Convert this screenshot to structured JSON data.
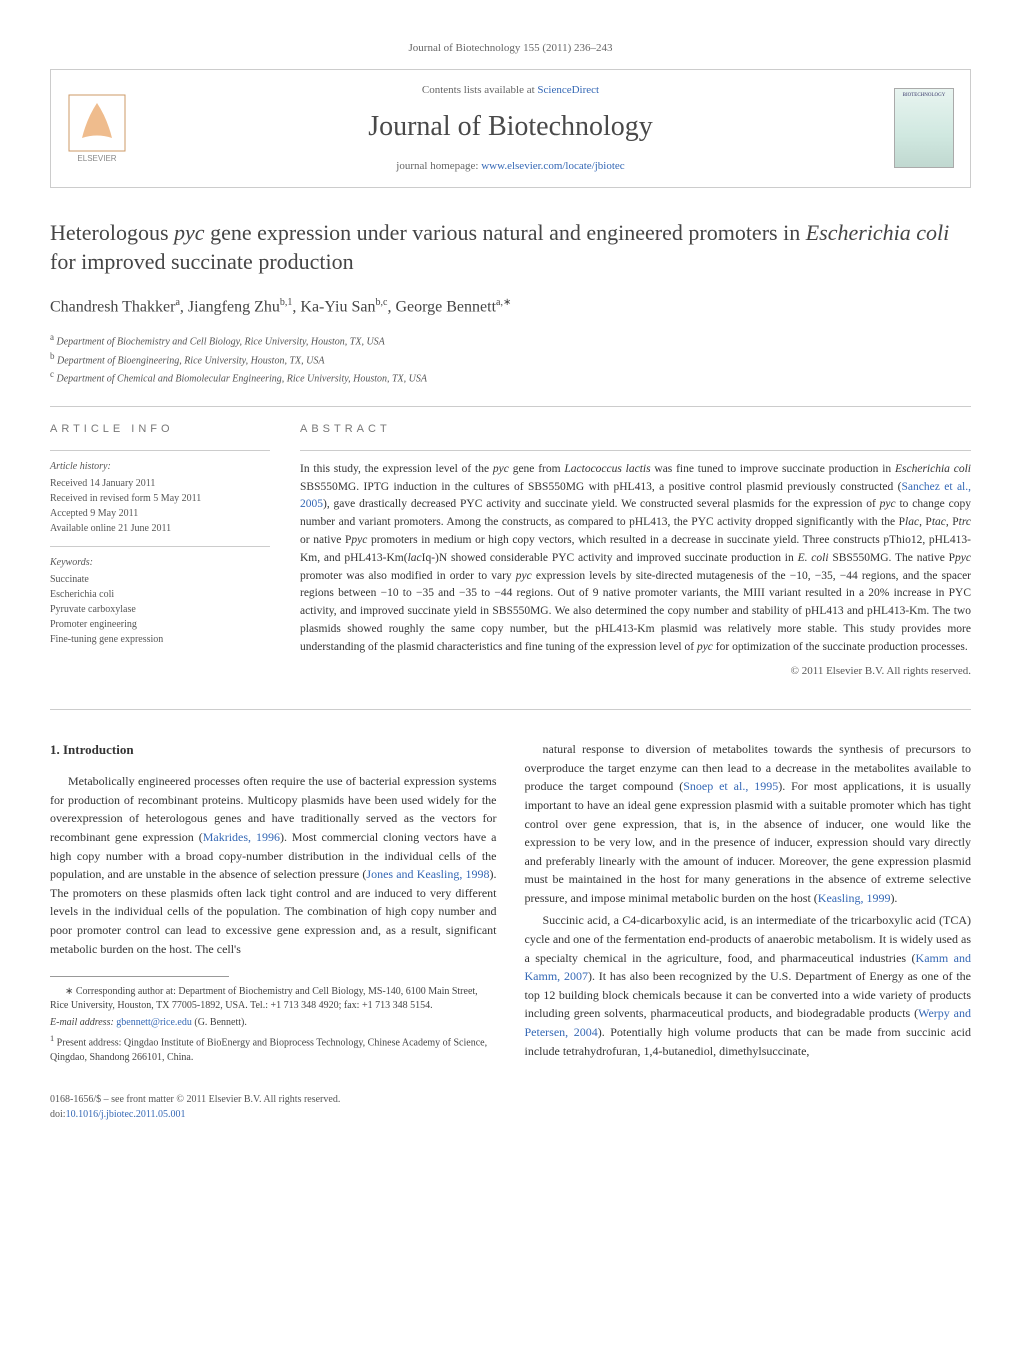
{
  "journal_ref": "Journal of Biotechnology 155 (2011) 236–243",
  "header": {
    "contents_prefix": "Contents lists available at ",
    "contents_link": "ScienceDirect",
    "journal_name": "Journal of Biotechnology",
    "homepage_prefix": "journal homepage: ",
    "homepage_link": "www.elsevier.com/locate/jbiotec",
    "cover_label": "BIOTECHNOLOGY"
  },
  "title_html": "Heterologous <i>pyc</i> gene expression under various natural and engineered promoters in <i>Escherichia coli</i> for improved succinate production",
  "authors_html": "Chandresh Thakker<sup>a</sup>, Jiangfeng Zhu<sup>b,1</sup>, Ka-Yiu San<sup>b,c</sup>, George Bennett<sup>a,∗</sup>",
  "affiliations": [
    {
      "sup": "a",
      "text": "Department of Biochemistry and Cell Biology, Rice University, Houston, TX, USA"
    },
    {
      "sup": "b",
      "text": "Department of Bioengineering, Rice University, Houston, TX, USA"
    },
    {
      "sup": "c",
      "text": "Department of Chemical and Biomolecular Engineering, Rice University, Houston, TX, USA"
    }
  ],
  "article_info": {
    "heading": "ARTICLE INFO",
    "history_label": "Article history:",
    "history": [
      "Received 14 January 2011",
      "Received in revised form 5 May 2011",
      "Accepted 9 May 2011",
      "Available online 21 June 2011"
    ],
    "keywords_label": "Keywords:",
    "keywords": [
      "Succinate",
      "Escherichia coli",
      "Pyruvate carboxylase",
      "Promoter engineering",
      "Fine-tuning gene expression"
    ]
  },
  "abstract": {
    "heading": "ABSTRACT",
    "text_html": "In this study, the expression level of the <i>pyc</i> gene from <i>Lactococcus lactis</i> was fine tuned to improve succinate production in <i>Escherichia coli</i> SBS550MG. IPTG induction in the cultures of SBS550MG with pHL413, a positive control plasmid previously constructed (<span class=\"ref-link\">Sanchez et al., 2005</span>), gave drastically decreased PYC activity and succinate yield. We constructed several plasmids for the expression of <i>pyc</i> to change copy number and variant promoters. Among the constructs, as compared to pHL413, the PYC activity dropped significantly with the P<i>lac</i>, P<i>tac</i>, P<i>trc</i> or native P<i>pyc</i> promoters in medium or high copy vectors, which resulted in a decrease in succinate yield. Three constructs pThio12, pHL413-Km, and pHL413-Km(<i>lac</i>Iq-)N showed considerable PYC activity and improved succinate production in <i>E. coli</i> SBS550MG. The native P<i>pyc</i> promoter was also modified in order to vary <i>pyc</i> expression levels by site-directed mutagenesis of the −10, −35, −44 regions, and the spacer regions between −10 to −35 and −35 to −44 regions. Out of 9 native promoter variants, the MIII variant resulted in a 20% increase in PYC activity, and improved succinate yield in SBS550MG. We also determined the copy number and stability of pHL413 and pHL413-Km. The two plasmids showed roughly the same copy number, but the pHL413-Km plasmid was relatively more stable. This study provides more understanding of the plasmid characteristics and fine tuning of the expression level of <i>pyc</i> for optimization of the succinate production processes.",
    "copyright": "© 2011 Elsevier B.V. All rights reserved."
  },
  "body": {
    "section_heading": "1. Introduction",
    "col1_paras_html": [
      "Metabolically engineered processes often require the use of bacterial expression systems for production of recombinant proteins. Multicopy plasmids have been used widely for the overexpression of heterologous genes and have traditionally served as the vectors for recombinant gene expression (<span class=\"ref-link\">Makrides, 1996</span>). Most commercial cloning vectors have a high copy number with a broad copy-number distribution in the individual cells of the population, and are unstable in the absence of selection pressure (<span class=\"ref-link\">Jones and Keasling, 1998</span>). The promoters on these plasmids often lack tight control and are induced to very different levels in the individual cells of the population. The combination of high copy number and poor promoter control can lead to excessive gene expression and, as a result, significant metabolic burden on the host. The cell's"
    ],
    "col2_paras_html": [
      "natural response to diversion of metabolites towards the synthesis of precursors to overproduce the target enzyme can then lead to a decrease in the metabolites available to produce the target compound (<span class=\"ref-link\">Snoep et al., 1995</span>). For most applications, it is usually important to have an ideal gene expression plasmid with a suitable promoter which has tight control over gene expression, that is, in the absence of inducer, one would like the expression to be very low, and in the presence of inducer, expression should vary directly and preferably linearly with the amount of inducer. Moreover, the gene expression plasmid must be maintained in the host for many generations in the absence of extreme selective pressure, and impose minimal metabolic burden on the host (<span class=\"ref-link\">Keasling, 1999</span>).",
      "Succinic acid, a C4-dicarboxylic acid, is an intermediate of the tricarboxylic acid (TCA) cycle and one of the fermentation end-products of anaerobic metabolism. It is widely used as a specialty chemical in the agriculture, food, and pharmaceutical industries (<span class=\"ref-link\">Kamm and Kamm, 2007</span>). It has also been recognized by the U.S. Department of Energy as one of the top 12 building block chemicals because it can be converted into a wide variety of products including green solvents, pharmaceutical products, and biodegradable products (<span class=\"ref-link\">Werpy and Petersen, 2004</span>). Potentially high volume products that can be made from succinic acid include tetrahydrofuran, 1,4-butanediol, dimethylsuccinate,"
    ]
  },
  "footnotes": {
    "corresponding_html": "∗ Corresponding author at: Department of Biochemistry and Cell Biology, MS-140, 6100 Main Street, Rice University, Houston, TX 77005-1892, USA. Tel.: +1 713 348 4920; fax: +1 713 348 5154.",
    "email_label": "E-mail address:",
    "email": "gbennett@rice.edu",
    "email_suffix": "(G. Bennett).",
    "present_address_html": "<sup>1</sup> Present address: Qingdao Institute of BioEnergy and Bioprocess Technology, Chinese Academy of Science, Qingdao, Shandong 266101, China."
  },
  "footer": {
    "copyright": "0168-1656/$ – see front matter © 2011 Elsevier B.V. All rights reserved.",
    "doi_prefix": "doi:",
    "doi": "10.1016/j.jbiotec.2011.05.001"
  },
  "colors": {
    "link": "#3568b5",
    "text": "#333333",
    "muted": "#666666",
    "border": "#cccccc"
  }
}
